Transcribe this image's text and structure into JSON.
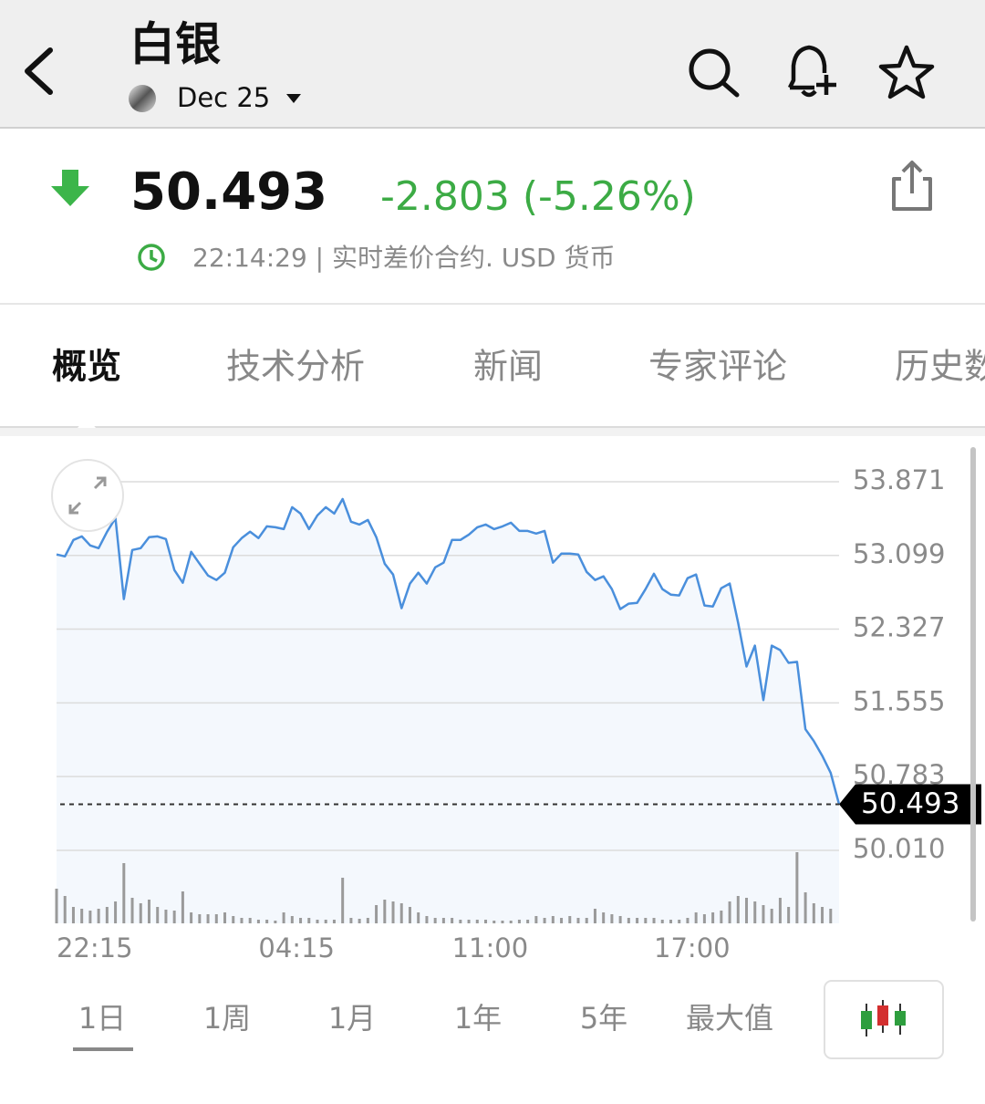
{
  "header": {
    "title": "白银",
    "contract": "Dec 25"
  },
  "quote": {
    "price": "50.493",
    "change": "-2.803 (-5.26%)",
    "meta": "22:14:29 | 实时差价合约. USD 货币"
  },
  "tabs": [
    "概览",
    "技术分析",
    "新闻",
    "专家评论",
    "历史数据"
  ],
  "chart_data": {
    "type": "line",
    "color": "#4a8fdc",
    "grid": true,
    "values": [
      53.109,
      53.089,
      53.261,
      53.299,
      53.204,
      53.175,
      53.347,
      53.49,
      52.642,
      53.156,
      53.175,
      53.29,
      53.299,
      53.271,
      52.946,
      52.813,
      53.137,
      53.013,
      52.889,
      52.842,
      52.918,
      53.185,
      53.28,
      53.347,
      53.28,
      53.404,
      53.394,
      53.375,
      53.604,
      53.537,
      53.375,
      53.518,
      53.604,
      53.537,
      53.69,
      53.452,
      53.423,
      53.471,
      53.29,
      53.013,
      52.899,
      52.546,
      52.804,
      52.918,
      52.804,
      52.975,
      53.023,
      53.261,
      53.261,
      53.318,
      53.394,
      53.423,
      53.375,
      53.404,
      53.442,
      53.356,
      53.356,
      53.328,
      53.356,
      53.023,
      53.118,
      53.118,
      53.109,
      52.927,
      52.842,
      52.88,
      52.746,
      52.537,
      52.594,
      52.603,
      52.746,
      52.908,
      52.746,
      52.689,
      52.68,
      52.861,
      52.899,
      52.575,
      52.565,
      52.756,
      52.804,
      52.394,
      51.936,
      52.155,
      51.584,
      52.155,
      52.108,
      51.974,
      51.984,
      51.279,
      51.155,
      51.002,
      50.821,
      50.493
    ],
    "volume": [
      38,
      30,
      18,
      16,
      14,
      16,
      18,
      24,
      66,
      28,
      22,
      26,
      18,
      15,
      14,
      35,
      12,
      10,
      10,
      10,
      12,
      8,
      6,
      6,
      4,
      4,
      3,
      12,
      8,
      6,
      6,
      4,
      4,
      4,
      50,
      6,
      5,
      6,
      20,
      26,
      24,
      22,
      18,
      12,
      8,
      6,
      6,
      6,
      4,
      4,
      4,
      4,
      3,
      3,
      3,
      4,
      4,
      8,
      6,
      8,
      6,
      8,
      6,
      6,
      16,
      12,
      10,
      8,
      6,
      6,
      6,
      6,
      4,
      4,
      4,
      6,
      12,
      10,
      12,
      14,
      24,
      30,
      28,
      24,
      20,
      16,
      28,
      18,
      78,
      34,
      22,
      18,
      16,
      0
    ],
    "ylim": [
      50.01,
      53.871
    ],
    "yticks": [
      {
        "value": 50.01,
        "label": "50.010"
      },
      50.783,
      51.555,
      52.327,
      53.099,
      53.871
    ],
    "xlim": [
      0,
      93
    ],
    "xticks": [
      {
        "value": 0,
        "label": "22:15"
      },
      {
        "value": 24,
        "label": "04:15"
      },
      {
        "value": 47,
        "label": "11:00"
      },
      {
        "value": 71,
        "label": "17:00"
      }
    ]
  },
  "ranges": [
    "1日",
    "1周",
    "1月",
    "1年",
    "5年",
    "最大值"
  ]
}
